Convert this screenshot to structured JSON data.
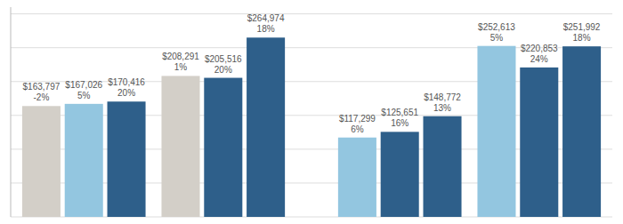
{
  "chart_data": {
    "type": "bar",
    "categories": [
      null,
      null,
      null,
      null,
      null,
      null,
      null,
      null,
      null,
      null,
      null,
      null
    ],
    "values": [
      163797,
      167026,
      170416,
      208291,
      205516,
      264974,
      117299,
      125651,
      148772,
      252613,
      220853,
      251992
    ],
    "value_labels": [
      "$163,797\n-2%",
      "$167,026\n5%",
      "$170,416\n20%",
      "$208,291\n1%",
      "$205,516\n20%",
      "$264,974\n18%",
      "$117,299\n6%",
      "$125,651\n16%",
      "$148,772\n13%",
      "$252,613\n5%",
      "$220,853\n24%",
      "$251,992\n18%"
    ],
    "data_labels": true,
    "colors": [
      "#d3cfc8",
      "#93c6e0",
      "#2e5f8a",
      "#d3cfc8",
      "#2e5f8a",
      "#2e5f8a",
      "#93c6e0",
      "#2e5f8a",
      "#2e5f8a",
      "#93c6e0",
      "#2e5f8a",
      "#2e5f8a"
    ],
    "ylim": [
      0,
      310000
    ],
    "yticks": [
      0,
      50000,
      100000,
      150000,
      200000,
      250000,
      300000
    ],
    "grid": true,
    "tick_labels": false
  }
}
